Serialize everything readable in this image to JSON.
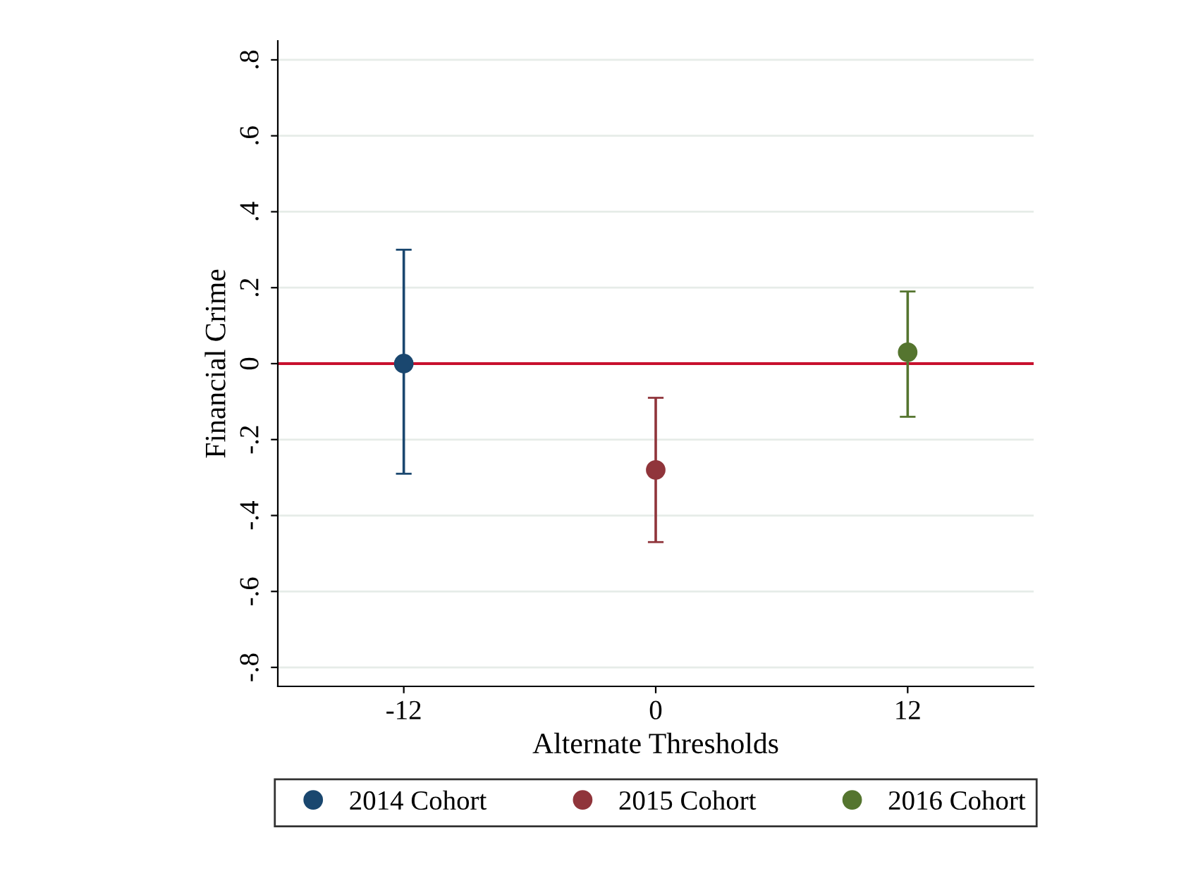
{
  "chart_data": {
    "type": "scatter",
    "xlabel": "Alternate Thresholds",
    "ylabel": "Financial Crime",
    "series": [
      {
        "name": "2014 Cohort",
        "color": "#1a476f",
        "x": [
          -12
        ],
        "values": [
          0.0
        ],
        "errors": [
          [
            -0.29,
            0.3
          ]
        ]
      },
      {
        "name": "2015 Cohort",
        "color": "#90353b",
        "x": [
          0
        ],
        "values": [
          -0.28
        ],
        "errors": [
          [
            -0.47,
            -0.09
          ]
        ]
      },
      {
        "name": "2016 Cohort",
        "color": "#55752f",
        "x": [
          12
        ],
        "values": [
          0.03
        ],
        "errors": [
          [
            -0.14,
            0.19
          ]
        ]
      }
    ],
    "xlim": [
      -18,
      18
    ],
    "xticks": [
      -12,
      0,
      12
    ],
    "ylim": [
      -0.85,
      0.85
    ],
    "yticks": [
      {
        "value": -0.8,
        "label": "-.8"
      },
      {
        "value": -0.6,
        "label": "-.6"
      },
      {
        "value": -0.4,
        "label": "-.4"
      },
      {
        "value": -0.2,
        "label": "-.2"
      },
      0,
      {
        "value": 0.2,
        "label": ".2"
      },
      {
        "value": 0.4,
        "label": ".4"
      },
      {
        "value": 0.6,
        "label": ".6"
      },
      {
        "value": 0.8,
        "label": ".8"
      }
    ],
    "ref_lines": [
      {
        "axis": "y",
        "value": 0,
        "color": "#c8102e"
      }
    ],
    "grid": "y",
    "legend": "bottom",
    "marker": "circle"
  }
}
